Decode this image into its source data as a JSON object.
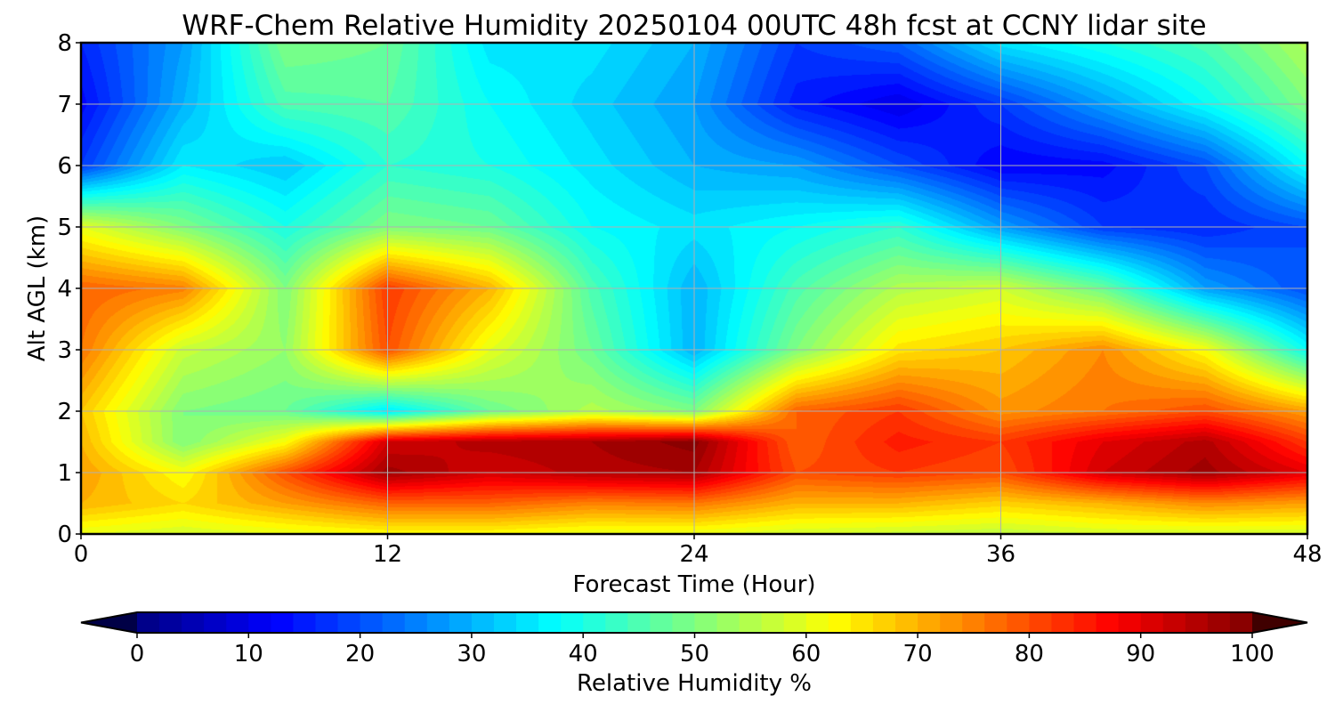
{
  "chart_data": {
    "type": "heatmap",
    "title": "WRF-Chem Relative Humidity 20250104 00UTC 48h fcst at CCNY lidar site",
    "xlabel": "Forecast Time (Hour)",
    "ylabel": "Alt AGL (km)",
    "xlim": [
      0,
      48
    ],
    "ylim": [
      0,
      8
    ],
    "x_ticks": [
      "0",
      "12",
      "24",
      "36",
      "48"
    ],
    "y_ticks": [
      "0",
      "1",
      "2",
      "3",
      "4",
      "5",
      "6",
      "7",
      "8"
    ],
    "grid": true,
    "colorbar": {
      "label": "Relative Humidity %",
      "range": [
        0,
        100
      ],
      "ticks": [
        "0",
        "10",
        "20",
        "30",
        "40",
        "50",
        "60",
        "70",
        "80",
        "90",
        "100"
      ],
      "extend": "both",
      "colormap": "jet"
    },
    "x": [
      0,
      4,
      8,
      12,
      16,
      20,
      24,
      28,
      32,
      36,
      40,
      44,
      48
    ],
    "y": [
      0,
      0.5,
      1,
      1.5,
      2,
      3,
      4,
      5,
      6,
      7,
      8
    ],
    "z": [
      [
        60,
        58,
        60,
        62,
        62,
        60,
        60,
        58,
        57,
        56,
        58,
        58,
        58
      ],
      [
        70,
        66,
        72,
        78,
        78,
        75,
        76,
        70,
        70,
        67,
        70,
        74,
        72
      ],
      [
        72,
        62,
        80,
        97,
        92,
        95,
        96,
        80,
        82,
        80,
        92,
        97,
        90
      ],
      [
        70,
        50,
        62,
        92,
        95,
        96,
        99,
        78,
        85,
        82,
        90,
        95,
        82
      ],
      [
        68,
        50,
        48,
        35,
        48,
        55,
        50,
        78,
        82,
        73,
        76,
        80,
        72
      ],
      [
        76,
        57,
        52,
        80,
        60,
        48,
        30,
        50,
        65,
        68,
        74,
        62,
        38
      ],
      [
        78,
        75,
        50,
        82,
        70,
        45,
        30,
        45,
        55,
        58,
        48,
        28,
        20
      ],
      [
        60,
        50,
        40,
        50,
        48,
        38,
        35,
        38,
        42,
        28,
        18,
        16,
        20
      ],
      [
        18,
        36,
        32,
        42,
        40,
        35,
        30,
        28,
        20,
        12,
        13,
        20,
        38
      ],
      [
        13,
        30,
        45,
        46,
        38,
        33,
        28,
        15,
        10,
        18,
        28,
        38,
        50
      ],
      [
        16,
        28,
        50,
        48,
        35,
        35,
        30,
        18,
        22,
        35,
        40,
        45,
        55
      ]
    ]
  }
}
